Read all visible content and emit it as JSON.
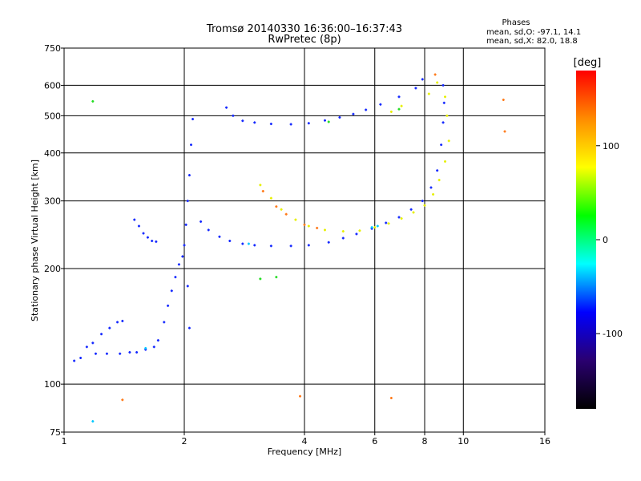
{
  "chart_data": {
    "type": "scatter",
    "title": "Tromsø 20140330 16:36:00–16:37:43",
    "subtitle": "RwPretec (8p)",
    "xlabel": "Frequency [MHz]",
    "ylabel": "Stationary phase Virtual Height [km]",
    "x_scale": "log",
    "y_scale": "log",
    "xlim": [
      1,
      16
    ],
    "ylim": [
      75,
      750
    ],
    "x_ticks": [
      1,
      2,
      4,
      6,
      8,
      10,
      16
    ],
    "y_ticks": [
      75,
      100,
      200,
      300,
      400,
      500,
      600,
      750
    ],
    "grid": true,
    "phase_box": {
      "title": "Phases",
      "line1": "mean, sd,O: -97.1, 14.1",
      "line2": "mean, sd,X:  82.0, 18.8"
    },
    "colorbar": {
      "label": "[deg]",
      "range": [
        -180,
        180
      ],
      "ticks": [
        100,
        0,
        -100
      ],
      "colors": [
        "#ff0000",
        "#ff8c00",
        "#ffff00",
        "#00ff00",
        "#00ffff",
        "#0000ff",
        "#2a0070",
        "#000000"
      ]
    },
    "series": [
      {
        "color": "#1428ff",
        "points": [
          [
            1.06,
            115
          ],
          [
            1.1,
            117
          ],
          [
            1.14,
            125
          ],
          [
            1.18,
            128
          ],
          [
            1.24,
            135
          ],
          [
            1.3,
            140
          ],
          [
            1.36,
            145
          ],
          [
            1.4,
            146
          ],
          [
            1.2,
            120
          ],
          [
            1.28,
            120
          ],
          [
            1.38,
            120
          ],
          [
            1.46,
            121
          ],
          [
            1.52,
            121
          ],
          [
            1.6,
            123
          ],
          [
            1.68,
            125
          ],
          [
            1.72,
            130
          ],
          [
            1.78,
            145
          ],
          [
            1.82,
            160
          ],
          [
            1.86,
            175
          ],
          [
            1.9,
            190
          ],
          [
            1.94,
            205
          ],
          [
            1.98,
            215
          ],
          [
            2.0,
            230
          ],
          [
            2.02,
            260
          ],
          [
            2.04,
            300
          ],
          [
            2.06,
            350
          ],
          [
            2.08,
            420
          ],
          [
            2.1,
            490
          ],
          [
            2.04,
            180
          ],
          [
            2.06,
            140
          ],
          [
            1.5,
            268
          ],
          [
            1.54,
            258
          ],
          [
            1.58,
            247
          ],
          [
            1.62,
            241
          ],
          [
            1.66,
            236
          ],
          [
            1.7,
            235
          ],
          [
            2.2,
            265
          ],
          [
            2.3,
            252
          ],
          [
            2.45,
            242
          ],
          [
            2.6,
            236
          ],
          [
            2.8,
            232
          ],
          [
            3.0,
            230
          ],
          [
            3.3,
            229
          ],
          [
            3.7,
            229
          ],
          [
            4.1,
            230
          ],
          [
            4.6,
            234
          ],
          [
            5.0,
            240
          ],
          [
            5.4,
            246
          ],
          [
            5.9,
            254
          ],
          [
            6.4,
            263
          ],
          [
            6.9,
            272
          ],
          [
            7.4,
            285
          ],
          [
            7.9,
            300
          ],
          [
            8.3,
            325
          ],
          [
            8.6,
            360
          ],
          [
            8.8,
            420
          ],
          [
            8.9,
            480
          ],
          [
            8.95,
            540
          ],
          [
            8.9,
            600
          ],
          [
            2.55,
            525
          ],
          [
            2.65,
            500
          ],
          [
            2.8,
            485
          ],
          [
            3.0,
            480
          ],
          [
            3.3,
            476
          ],
          [
            3.7,
            475
          ],
          [
            4.1,
            478
          ],
          [
            4.5,
            486
          ],
          [
            4.9,
            495
          ],
          [
            5.3,
            505
          ],
          [
            5.7,
            518
          ],
          [
            6.2,
            535
          ],
          [
            6.9,
            560
          ],
          [
            7.6,
            590
          ],
          [
            7.9,
            622
          ]
        ]
      },
      {
        "color": "#e6f000",
        "points": [
          [
            3.1,
            330
          ],
          [
            3.3,
            305
          ],
          [
            3.5,
            285
          ],
          [
            3.8,
            268
          ],
          [
            4.1,
            258
          ],
          [
            4.5,
            252
          ],
          [
            5.0,
            250
          ],
          [
            5.5,
            251
          ],
          [
            6.0,
            256
          ],
          [
            6.5,
            262
          ],
          [
            7.0,
            270
          ],
          [
            7.5,
            280
          ],
          [
            8.0,
            292
          ],
          [
            8.4,
            312
          ],
          [
            8.7,
            340
          ],
          [
            9.0,
            380
          ],
          [
            9.2,
            430
          ],
          [
            9.1,
            500
          ],
          [
            9.0,
            560
          ],
          [
            8.6,
            610
          ],
          [
            8.2,
            570
          ],
          [
            7.0,
            530
          ],
          [
            6.6,
            512
          ]
        ]
      },
      {
        "color": "#ff7a1a",
        "points": [
          [
            3.15,
            318
          ],
          [
            3.4,
            290
          ],
          [
            3.6,
            277
          ],
          [
            4.0,
            260
          ],
          [
            4.3,
            255
          ],
          [
            8.5,
            640
          ],
          [
            12.6,
            550
          ],
          [
            12.7,
            455
          ],
          [
            6.6,
            92
          ],
          [
            3.9,
            93
          ],
          [
            1.4,
            91
          ]
        ]
      },
      {
        "color": "#00c8ff",
        "points": [
          [
            2.9,
            232
          ],
          [
            5.9,
            256
          ],
          [
            6.1,
            258
          ],
          [
            1.6,
            124
          ],
          [
            1.18,
            80
          ]
        ]
      },
      {
        "color": "#22dd22",
        "points": [
          [
            1.18,
            545
          ],
          [
            4.6,
            482
          ],
          [
            3.4,
            190
          ],
          [
            3.1,
            188
          ],
          [
            6.9,
            520
          ]
        ]
      }
    ]
  }
}
